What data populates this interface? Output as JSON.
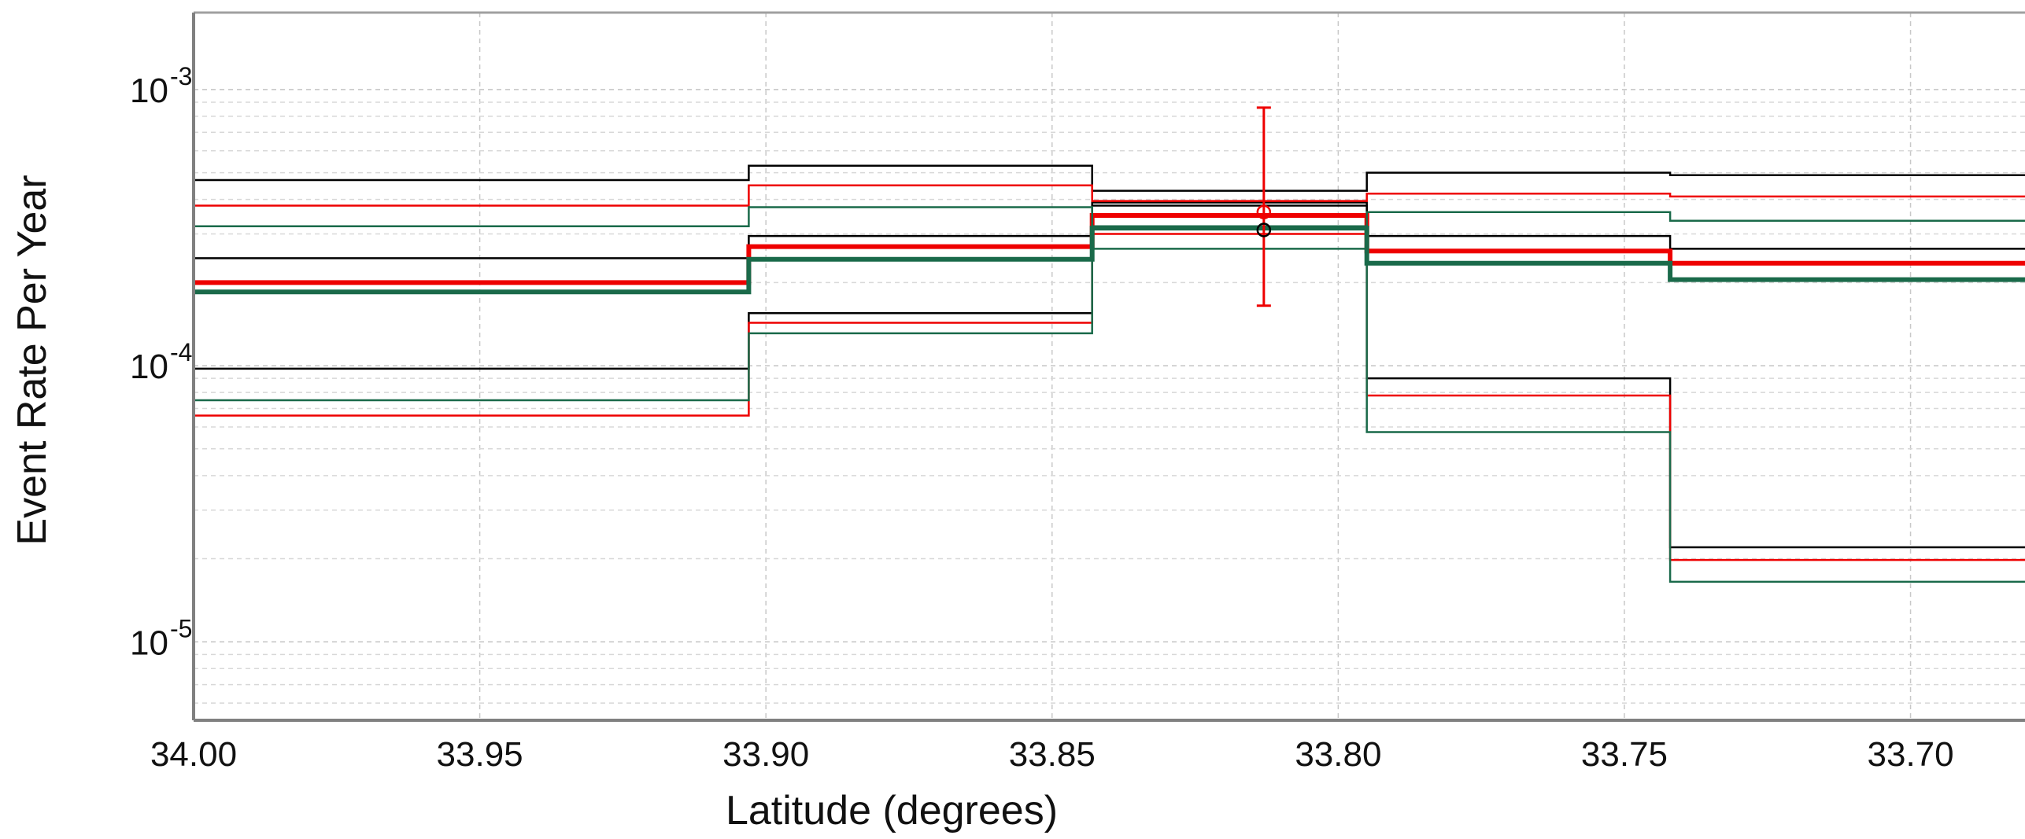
{
  "chart_data": {
    "type": "line",
    "xlabel": "Latitude (degrees)",
    "ylabel": "Event Rate Per Year",
    "x_scale": "linear",
    "x_reversed": true,
    "xlim": [
      34.0,
      33.68
    ],
    "y_scale": "log",
    "ylim": [
      5.2e-06,
      0.0019
    ],
    "grid": true,
    "x_ticks": [
      34.0,
      33.95,
      33.9,
      33.85,
      33.8,
      33.75,
      33.7
    ],
    "x_tick_labels": [
      "34.00",
      "33.95",
      "33.90",
      "33.85",
      "33.80",
      "33.75",
      "33.70"
    ],
    "y_ticks": [
      {
        "value": 0.001,
        "base": "10",
        "exp": "-3"
      },
      {
        "value": 0.0001,
        "base": "10",
        "exp": "-4"
      },
      {
        "value": 1e-05,
        "base": "10",
        "exp": "-5"
      }
    ],
    "bin_edges": [
      34.0,
      33.903,
      33.843,
      33.795,
      33.742,
      33.68
    ],
    "series": [
      {
        "color": "#000000",
        "width": 2.5,
        "values": [
          0.00047,
          0.00053,
          0.00043,
          0.0005,
          0.00049
        ]
      },
      {
        "color": "#000000",
        "width": 2.5,
        "values": [
          0.000245,
          0.000295,
          0.00038,
          0.000295,
          0.000265
        ]
      },
      {
        "color": "#000000",
        "width": 2.5,
        "values": [
          9.75e-05,
          0.000155,
          0.00039,
          9e-05,
          2.2e-05
        ]
      },
      {
        "color": "#ee0000",
        "width": 2.5,
        "values": [
          0.00038,
          0.00045,
          0.000395,
          0.00042,
          0.00041
        ]
      },
      {
        "color": "#ee0000",
        "width": 6,
        "values": [
          0.0002,
          0.00027,
          0.00035,
          0.00026,
          0.000235
        ]
      },
      {
        "color": "#ee0000",
        "width": 2.5,
        "values": [
          6.6e-05,
          0.000143,
          0.0003,
          7.8e-05,
          1.98e-05
        ]
      },
      {
        "color": "#1a6a4a",
        "width": 2.5,
        "values": [
          0.00032,
          0.000375,
          0.000265,
          0.00036,
          0.000335
        ]
      },
      {
        "color": "#1a6a4a",
        "width": 6,
        "values": [
          0.000185,
          0.000243,
          0.000315,
          0.000235,
          0.000205
        ]
      },
      {
        "color": "#1a6a4a",
        "width": 2.5,
        "values": [
          7.5e-05,
          0.000131,
          0.00032,
          5.75e-05,
          1.65e-05
        ]
      }
    ],
    "error_bar": {
      "x": 33.813,
      "y": 0.00036,
      "y_low": 0.000165,
      "y_high": 0.00086,
      "color": "#ee0000"
    },
    "marker_points": [
      {
        "x": 33.813,
        "y": 0.00036,
        "color": "#ee0000"
      },
      {
        "x": 33.813,
        "y": 0.00031,
        "color": "#000000"
      }
    ]
  }
}
